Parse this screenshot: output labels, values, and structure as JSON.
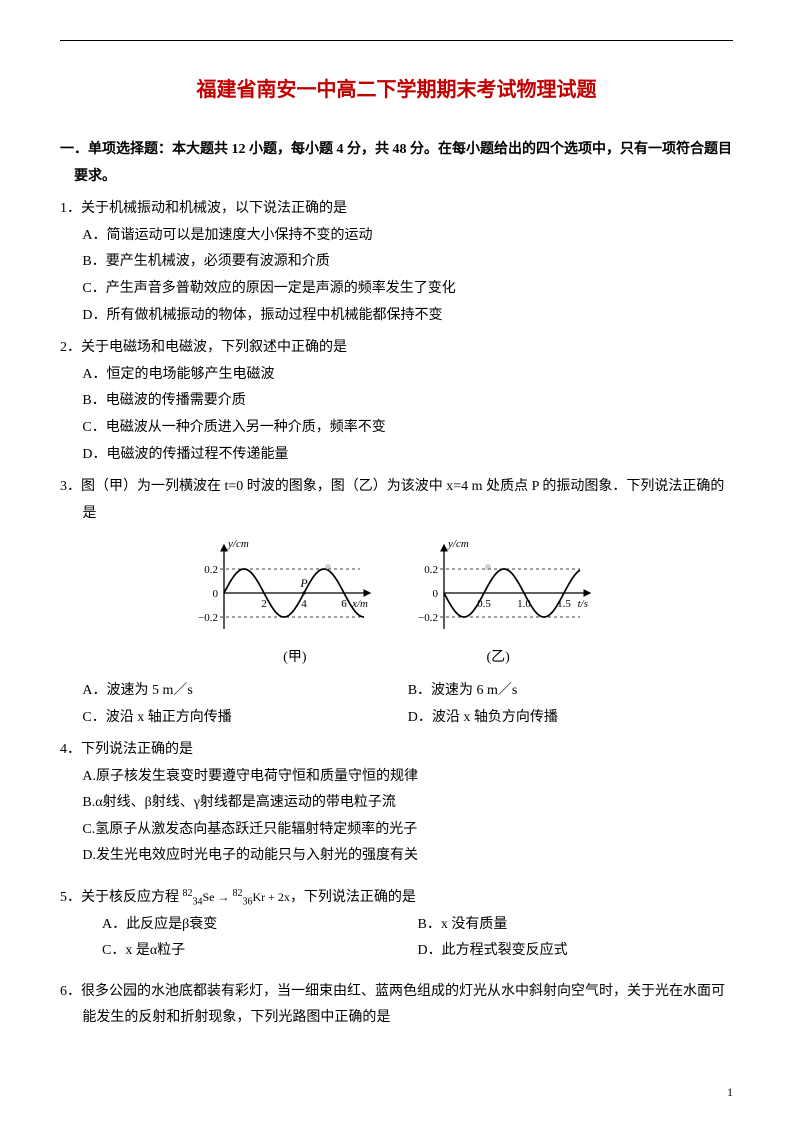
{
  "title": "福建省南安一中高二下学期期末考试物理试题",
  "title_color": "#c00000",
  "section1": {
    "heading": "一．单项选择题：本大题共 12 小题，每小题 4 分，共 48 分。在每小题给出的四个选项中，只有一项符合题目要求。"
  },
  "q1": {
    "stem": "1．关于机械振动和机械波，以下说法正确的是",
    "A": "A．简谐运动可以是加速度大小保持不变的运动",
    "B": "B．要产生机械波，必须要有波源和介质",
    "C": "C．产生声音多普勒效应的原因一定是声源的频率发生了变化",
    "D": "D．所有做机械振动的物体，振动过程中机械能都保持不变"
  },
  "q2": {
    "stem": "2．关于电磁场和电磁波，下列叙述中正确的是",
    "A": "A．恒定的电场能够产生电磁波",
    "B": "B．电磁波的传播需要介质",
    "C": "C．电磁波从一种介质进入另一种介质，频率不变",
    "D": "D．电磁波的传播过程不传递能量"
  },
  "q3": {
    "stem": "3．图（甲）为一列横波在 t=0 时波的图象，图（乙）为该波中 x=4 m 处质点 P 的振动图象．下列说法正确的是",
    "A": "A．波速为 5 m／s",
    "B": "B．波速为 6 m／s",
    "C": "C．波沿 x 轴正方向传播",
    "D": "D．波沿 x 轴负方向传播",
    "fig_jia_label": "(甲)",
    "fig_yi_label": "(乙)",
    "fig_jia": {
      "ylabel": "y/cm",
      "xlabel": "x/m",
      "yticks": [
        "0.2",
        "0",
        "−0.2"
      ],
      "xticks": [
        "2",
        "4",
        "6"
      ],
      "P_label": "P",
      "amplitude": 0.2,
      "wavelength": 4,
      "xmax": 7,
      "colors": {
        "axis": "#000000",
        "curve": "#000000",
        "dash": "#000000",
        "bg": "#ffffff"
      },
      "stroke_width": 1.3
    },
    "fig_yi": {
      "ylabel": "y/cm",
      "xlabel": "t/s",
      "yticks": [
        "0.2",
        "0",
        "−0.2"
      ],
      "xticks": [
        "0.5",
        "1.0",
        "1.5"
      ],
      "amplitude": 0.2,
      "period": 1.0,
      "xmax": 1.7,
      "colors": {
        "axis": "#000000",
        "curve": "#000000",
        "dash": "#000000",
        "bg": "#ffffff"
      },
      "stroke_width": 1.3
    }
  },
  "q4": {
    "stem": "4．下列说法正确的是",
    "A": "A.原子核发生衰变时要遵守电荷守恒和质量守恒的规律",
    "B": "B.α射线、β射线、γ射线都是高速运动的带电粒子流",
    "C": "C.氢原子从激发态向基态跃迁只能辐射特定频率的光子",
    "D": "D.发生光电效应时光电子的动能只与入射光的强度有关"
  },
  "q5": {
    "stem_prefix": "5．关于核反应方程 ",
    "eq_html": "<sup>82</sup><sub>34</sub>Se → <sup>82</sup><sub>36</sub>Kr + 2x",
    "stem_suffix": "，下列说法正确的是",
    "A": "A．此反应是β衰变",
    "B": "B．x 没有质量",
    "C": "C．x 是α粒子",
    "D": "D．此方程式裂变反应式"
  },
  "q6": {
    "stem": "6．很多公园的水池底都装有彩灯，当一细束由红、蓝两色组成的灯光从水中斜射向空气时，关于光在水面可能发生的反射和折射现象，下列光路图中正确的是"
  },
  "pagenum": "1"
}
